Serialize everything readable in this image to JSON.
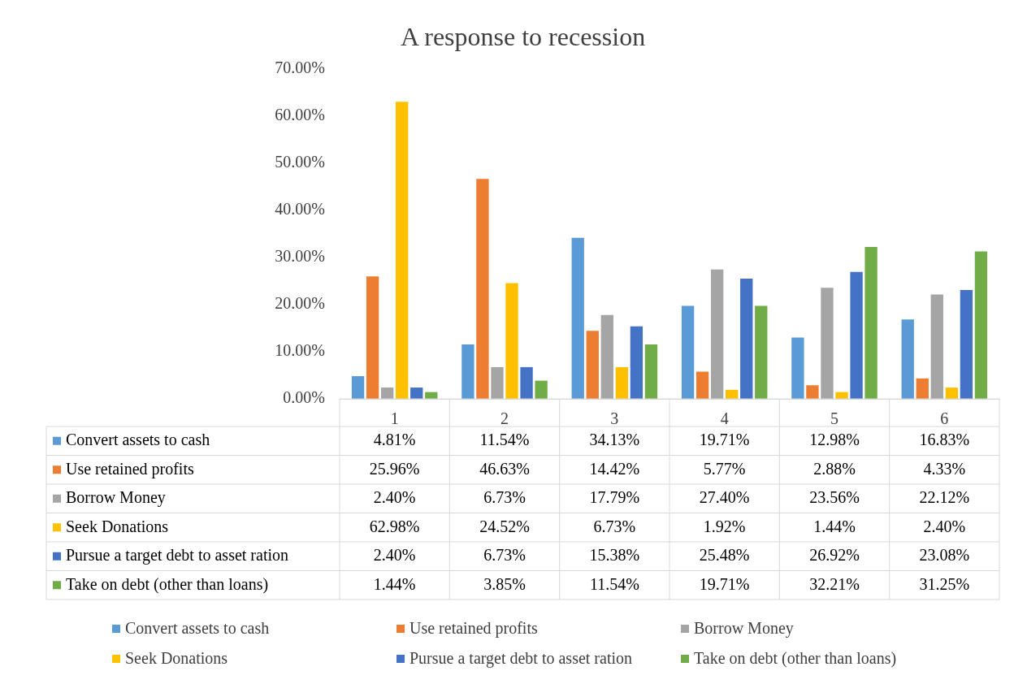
{
  "chart_data": {
    "type": "bar",
    "title": "A response to recession",
    "categories": [
      "1",
      "2",
      "3",
      "4",
      "5",
      "6"
    ],
    "series": [
      {
        "name": "Convert assets to cash",
        "color": "#5b9bd5",
        "values": [
          4.81,
          11.54,
          34.13,
          19.71,
          12.98,
          16.83
        ],
        "value_labels": [
          "4.81%",
          "11.54%",
          "34.13%",
          "19.71%",
          "12.98%",
          "16.83%"
        ]
      },
      {
        "name": "Use retained profits",
        "color": "#ed7d31",
        "values": [
          25.96,
          46.63,
          14.42,
          5.77,
          2.88,
          4.33
        ],
        "value_labels": [
          "25.96%",
          "46.63%",
          "14.42%",
          "5.77%",
          "2.88%",
          "4.33%"
        ]
      },
      {
        "name": "Borrow Money",
        "color": "#a5a5a5",
        "values": [
          2.4,
          6.73,
          17.79,
          27.4,
          23.56,
          22.12
        ],
        "value_labels": [
          "2.40%",
          "6.73%",
          "17.79%",
          "27.40%",
          "23.56%",
          "22.12%"
        ]
      },
      {
        "name": "Seek Donations",
        "color": "#ffc000",
        "values": [
          62.98,
          24.52,
          6.73,
          1.92,
          1.44,
          2.4
        ],
        "value_labels": [
          "62.98%",
          "24.52%",
          "6.73%",
          "1.92%",
          "1.44%",
          "2.40%"
        ]
      },
      {
        "name": "Pursue a target debt to asset ration",
        "color": "#4472c4",
        "values": [
          2.4,
          6.73,
          15.38,
          25.48,
          26.92,
          23.08
        ],
        "value_labels": [
          "2.40%",
          "6.73%",
          "15.38%",
          "25.48%",
          "26.92%",
          "23.08%"
        ]
      },
      {
        "name": "Take on debt (other than loans)",
        "color": "#70ad47",
        "values": [
          1.44,
          3.85,
          11.54,
          19.71,
          32.21,
          31.25
        ],
        "value_labels": [
          "1.44%",
          "3.85%",
          "11.54%",
          "19.71%",
          "32.21%",
          "31.25%"
        ]
      }
    ],
    "ylim": [
      0,
      70
    ],
    "yticks": [
      {
        "value": 0,
        "label": "0.00%"
      },
      {
        "value": 10,
        "label": "10.00%"
      },
      {
        "value": 20,
        "label": "20.00%"
      },
      {
        "value": 30,
        "label": "30.00%"
      },
      {
        "value": 40,
        "label": "40.00%"
      },
      {
        "value": 50,
        "label": "50.00%"
      },
      {
        "value": 60,
        "label": "60.00%"
      },
      {
        "value": 70,
        "label": "70.00%"
      }
    ],
    "grid": false,
    "legend": "bottom"
  }
}
